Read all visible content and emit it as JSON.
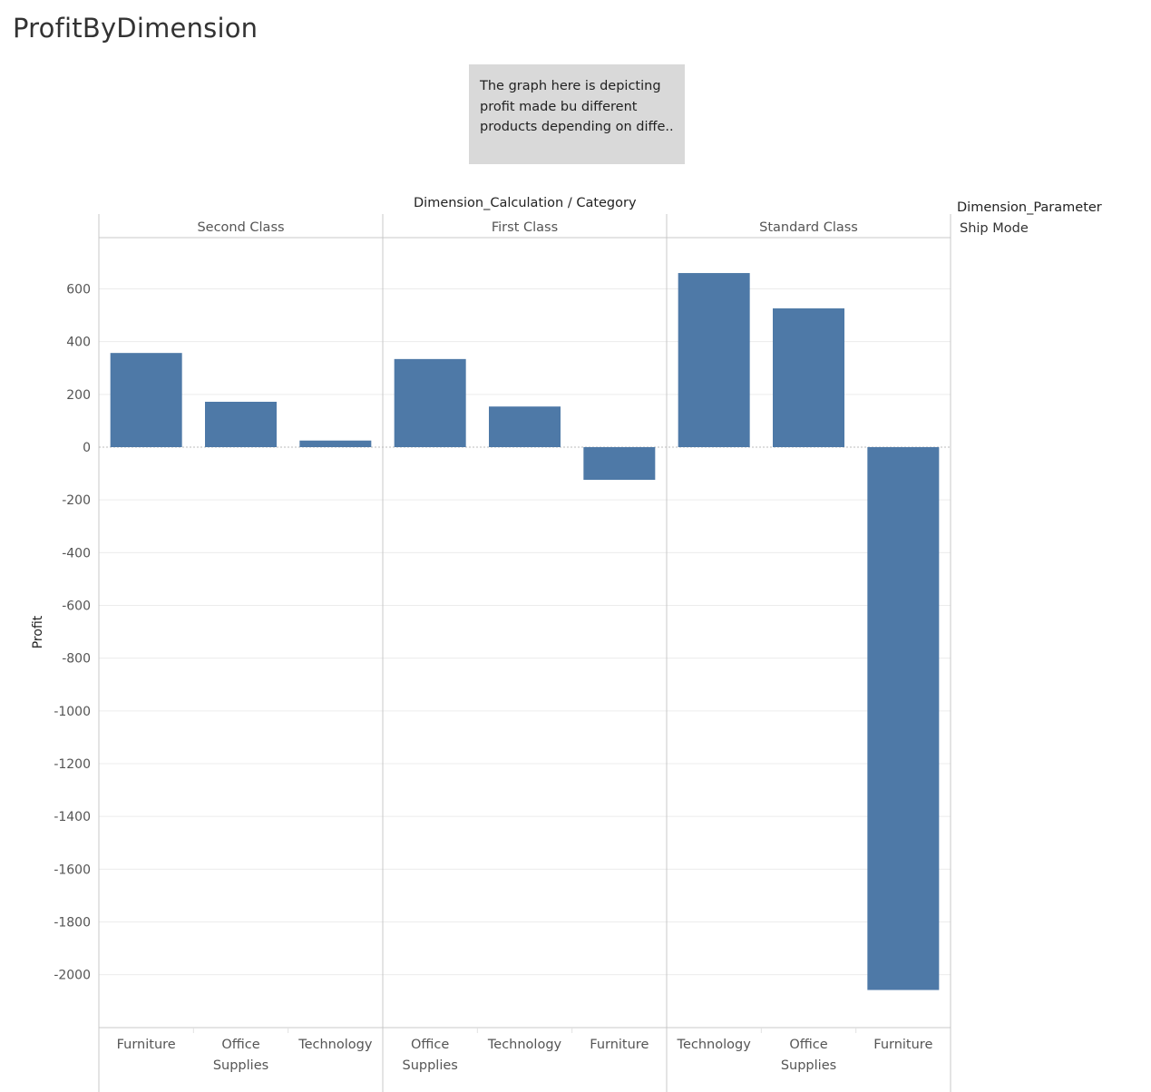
{
  "page_title": "ProfitByDimension",
  "annotation": {
    "lines": [
      "The graph here is depicting",
      "profit made bu different",
      "products depending on diffe.."
    ]
  },
  "legend": {
    "title": "Dimension_Parameter",
    "value": "Ship Mode"
  },
  "chart_data": {
    "type": "bar",
    "column_header_title": "Dimension_Calculation  /  Category",
    "ylabel": "Profit",
    "ylim": [
      -2200,
      800
    ],
    "yticks": [
      600,
      400,
      200,
      0,
      -200,
      -400,
      -600,
      -800,
      -1000,
      -1200,
      -1400,
      -1600,
      -1800,
      -2000
    ],
    "bar_color": "#4e79a7",
    "groups": [
      {
        "name": "Second Class",
        "categories": [
          [
            "Furniture"
          ],
          [
            "Office",
            "Supplies"
          ],
          [
            "Technology"
          ]
        ],
        "values": [
          357,
          172,
          25
        ]
      },
      {
        "name": "First Class",
        "categories": [
          [
            "Office",
            "Supplies"
          ],
          [
            "Technology"
          ],
          [
            "Furniture"
          ]
        ],
        "values": [
          334,
          154,
          -124
        ]
      },
      {
        "name": "Standard Class",
        "categories": [
          [
            "Technology"
          ],
          [
            "Office",
            "Supplies"
          ],
          [
            "Furniture"
          ]
        ],
        "values": [
          660,
          526,
          -2058
        ]
      }
    ]
  }
}
